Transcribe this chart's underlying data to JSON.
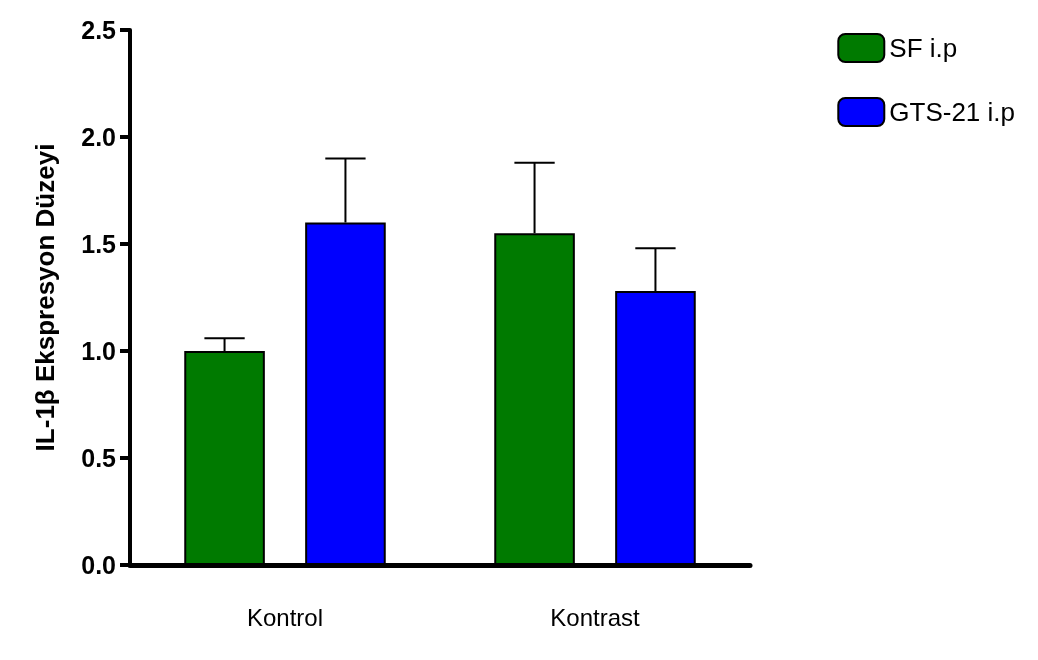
{
  "chart_data": {
    "type": "bar",
    "ylabel": "IL-1β Ekspresyon Düzeyi",
    "categories": [
      "Kontrol",
      "Kontrast"
    ],
    "series": [
      {
        "name": "SF i.p",
        "color": "#007a00",
        "values": [
          1.0,
          1.55
        ],
        "errors": [
          [
            1.0,
            1.06
          ],
          [
            1.55,
            1.88
          ]
        ]
      },
      {
        "name": "GTS-21 i.p",
        "color": "#0000ff",
        "values": [
          1.6,
          1.28
        ],
        "errors": [
          [
            1.6,
            1.9
          ],
          [
            1.28,
            1.48
          ]
        ]
      }
    ],
    "ylim": [
      0,
      2.5
    ],
    "yticks": [
      {
        "value": 0,
        "label": "0.0"
      },
      {
        "value": 0.5,
        "label": "0.5"
      },
      {
        "value": 1,
        "label": "1.0"
      },
      {
        "value": 1.5,
        "label": "1.5"
      },
      {
        "value": 2,
        "label": "2.0"
      },
      {
        "value": 2.5,
        "label": "2.5"
      }
    ],
    "grid": false,
    "legend": "top right"
  }
}
